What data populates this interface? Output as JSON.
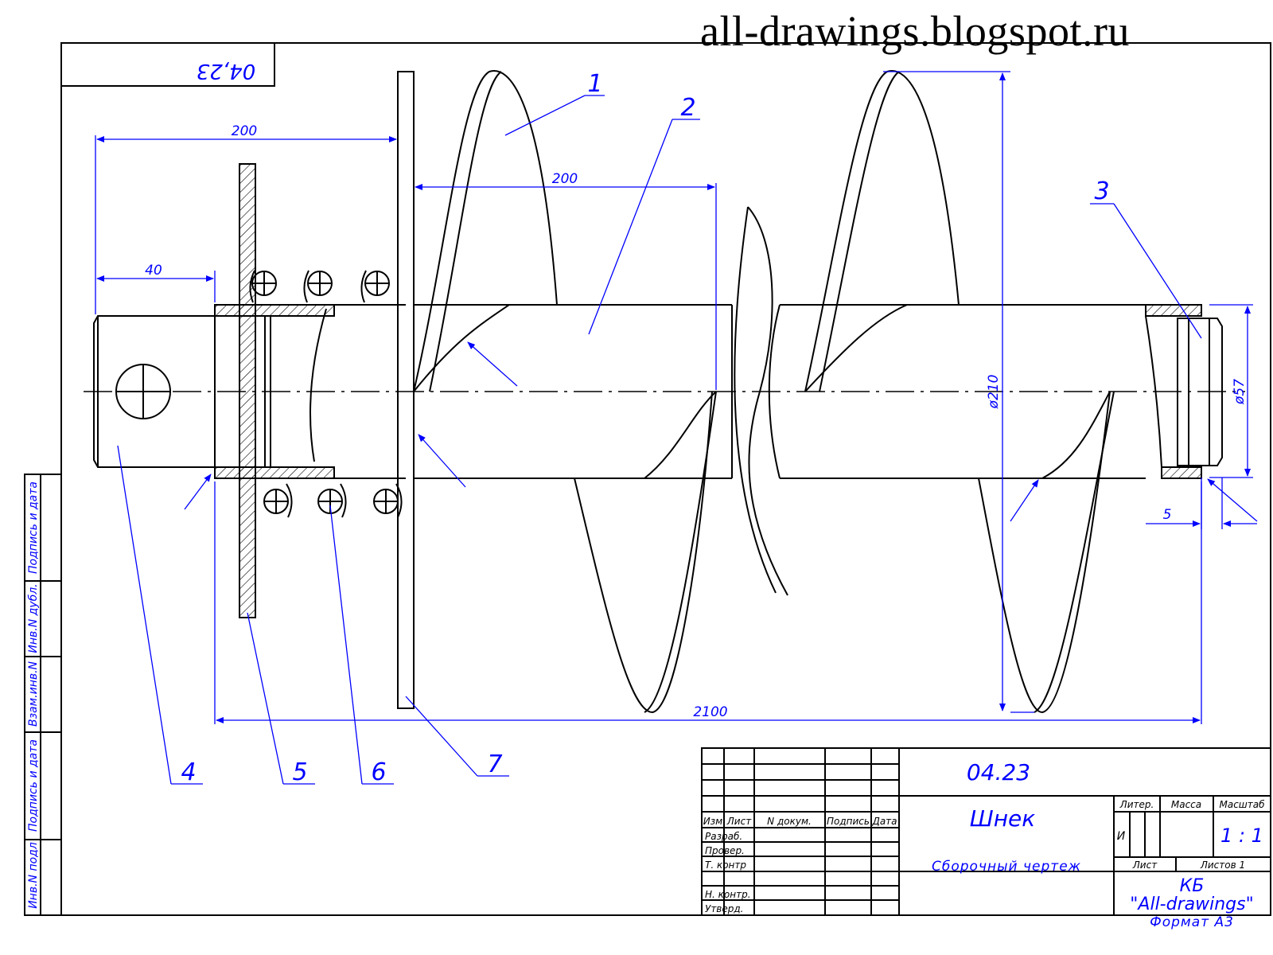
{
  "watermark": "all-drawings.blogspot.ru",
  "corner_stamp": "04,23",
  "dimensions": {
    "d200_top": "200",
    "d200_inner": "200",
    "d40": "40",
    "d210": "ø210",
    "d57": "ø57",
    "d5": "5",
    "d2100": "2100"
  },
  "callouts": [
    "1",
    "2",
    "3",
    "4",
    "5",
    "6",
    "7"
  ],
  "side_stamp_labels": [
    "Инв.N подл",
    "Подпись и дата",
    "Взам.инв.N",
    "Инв.N дубл.",
    "Подпись и дата"
  ],
  "title_block": {
    "designation": "04.23",
    "name": "Шнек",
    "doc_type": "Сборочный чертеж",
    "col_headers": [
      "Изм",
      "Лист",
      "N докум.",
      "Подпись",
      "Дата"
    ],
    "rows": [
      "Разраб.",
      "Провер.",
      "Т. контр",
      "Н. контр.",
      "Утверд."
    ],
    "liter_label": "Литер.",
    "mass_label": "Масса",
    "scale_label": "Масштаб",
    "liter_value": "И",
    "scale_value": "1 : 1",
    "sheet_label": "Лист",
    "sheets_label": "Листов 1",
    "org_line1": "КБ",
    "org_line2": "\"All-drawings\"",
    "format": "Формат А3"
  },
  "colors": {
    "line": "#000000",
    "annotation": "#0000ff"
  }
}
